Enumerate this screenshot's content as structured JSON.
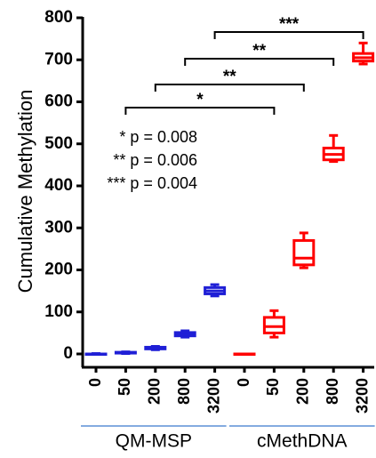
{
  "chart_data": {
    "type": "box",
    "y_label": "Cumulative Methylation",
    "ylim": [
      0,
      800
    ],
    "yticks": [
      0,
      100,
      200,
      300,
      400,
      500,
      600,
      700,
      800
    ],
    "series": [
      {
        "name": "QM-MSP",
        "color": "#1f1fd6",
        "categories": [
          "0",
          "50",
          "200",
          "800",
          "3200"
        ],
        "min": [
          0,
          1,
          10,
          40,
          138
        ],
        "q1": [
          0,
          2,
          12,
          43,
          143
        ],
        "median": [
          0,
          3,
          14,
          47,
          150
        ],
        "q3": [
          0,
          4,
          16,
          51,
          158
        ],
        "max": [
          1,
          5,
          18,
          55,
          165
        ]
      },
      {
        "name": "cMethDNA",
        "color": "#ff0000",
        "categories": [
          "0",
          "50",
          "200",
          "800",
          "3200"
        ],
        "min": [
          0,
          40,
          205,
          458,
          690
        ],
        "q1": [
          0,
          50,
          212,
          462,
          697
        ],
        "median": [
          0,
          65,
          228,
          475,
          705
        ],
        "q3": [
          0,
          87,
          270,
          490,
          715
        ],
        "max": [
          0,
          103,
          288,
          520,
          740
        ]
      }
    ],
    "significance": [
      "*",
      "**",
      "**",
      "***"
    ],
    "p_values": [
      "* p = 0.008",
      "** p = 0.006",
      "*** p = 0.004"
    ]
  }
}
